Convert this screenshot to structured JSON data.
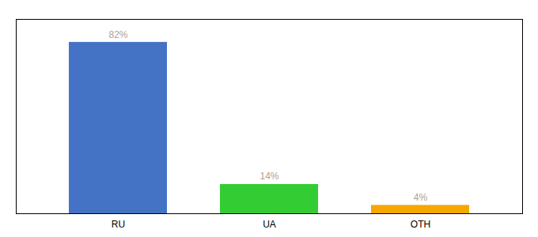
{
  "chart_data": {
    "type": "bar",
    "categories": [
      "RU",
      "UA",
      "OTH"
    ],
    "values": [
      82,
      14,
      4
    ],
    "value_labels": [
      "82%",
      "14%",
      "4%"
    ],
    "colors": [
      "#4472c4",
      "#33cc33",
      "#f5a800"
    ],
    "ylim": [
      0,
      93
    ],
    "data_labels": true,
    "tick_labels": "x",
    "grid": false
  }
}
